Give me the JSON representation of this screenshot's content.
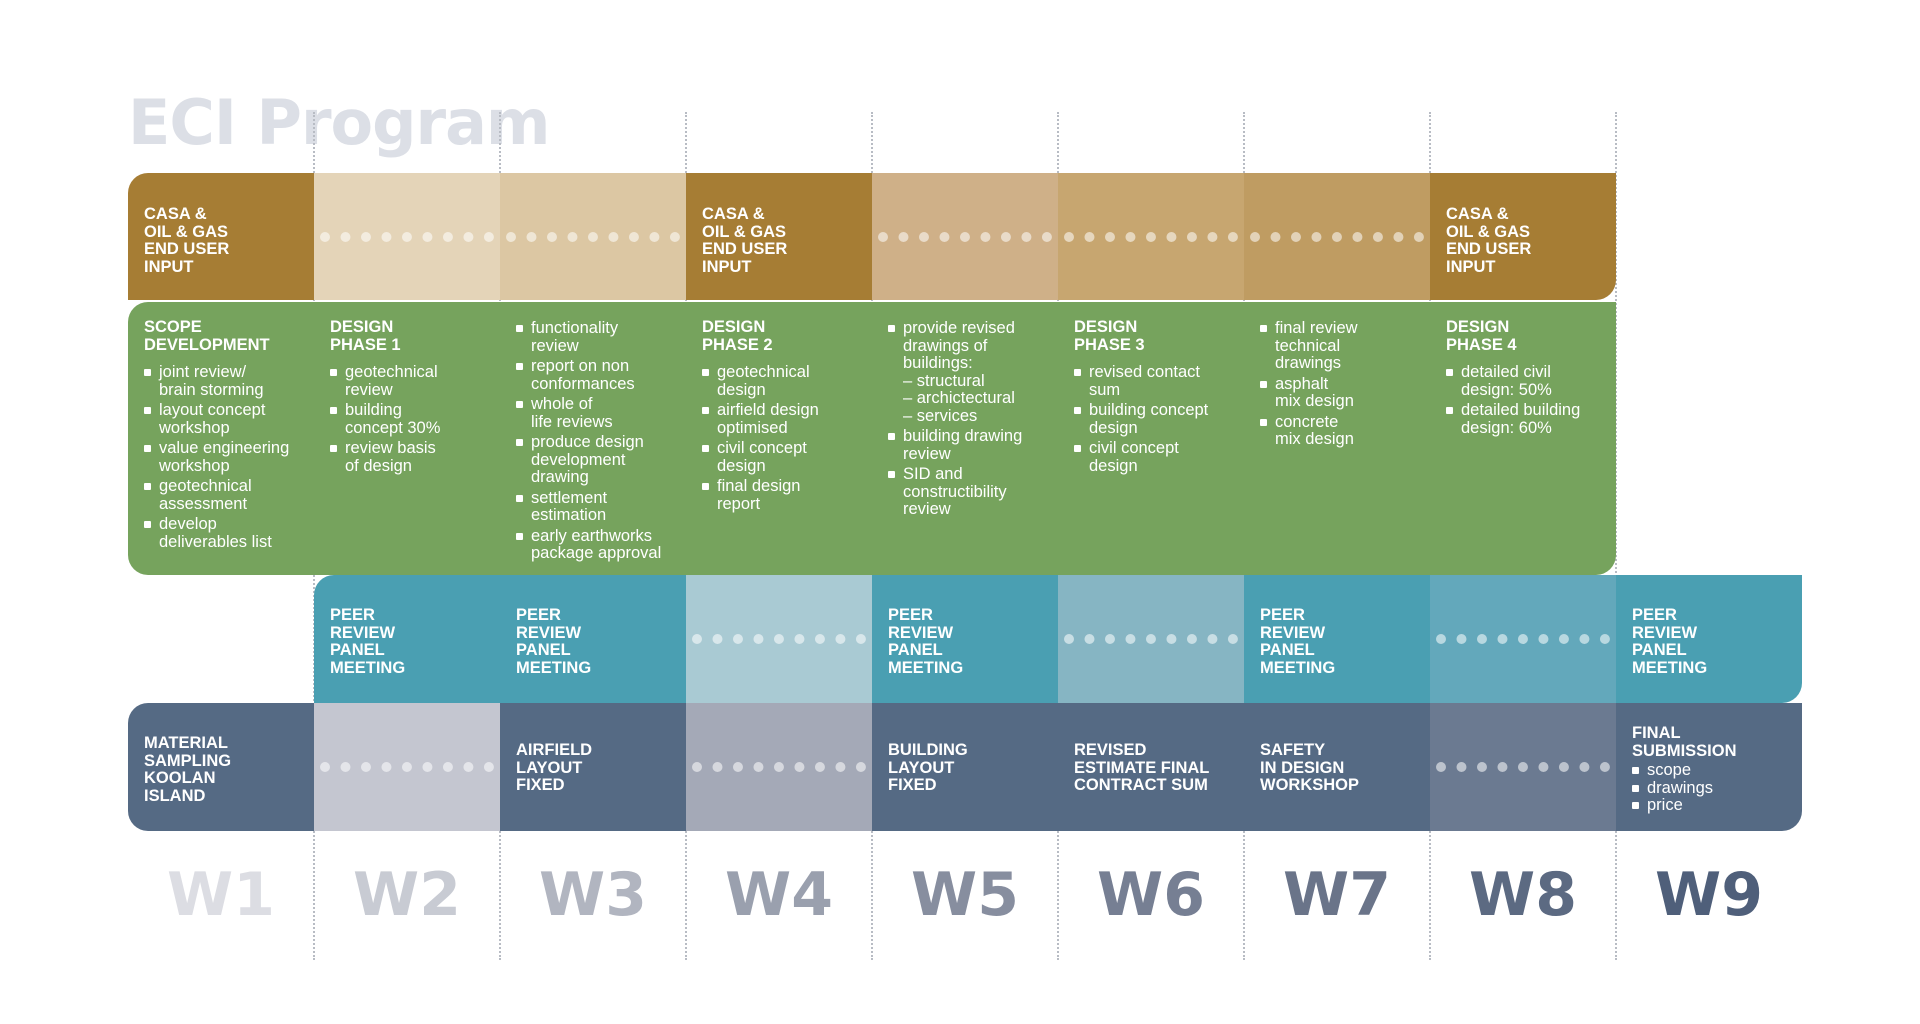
{
  "title": "ECI Program",
  "weeks": [
    "W1",
    "W2",
    "W3",
    "W4",
    "W5",
    "W6",
    "W7",
    "W8",
    "W9"
  ],
  "colors": {
    "title": "#dcdfe6",
    "week_labels": [
      "#dcdde3",
      "#c8cbd3",
      "#b1b5c0",
      "#9aa0ae",
      "#878e9f",
      "#767f93",
      "#6a7489",
      "#5c6a82",
      "#4f5f7a"
    ],
    "row1": [
      "#a67d34",
      "#e4d4b8",
      "#dcc7a3",
      "#a67d34",
      "#cfb088",
      "#c7a670",
      "#bf9c62",
      "#a67d34"
    ],
    "row2": "#76a35d",
    "row3": [
      "#4a9fb2",
      "#4a9fb2",
      "#a9cad3",
      "#4a9fb2",
      "#86b5c3",
      "#4a9fb2",
      "#63a8bb",
      "#4a9fb2"
    ],
    "row4": [
      "#556a84",
      "#c4c6d0",
      "#556a84",
      "#a4a9b7",
      "#556a84",
      "#556a84",
      "#556a84",
      "#6b7a91",
      "#556a84"
    ]
  },
  "row1": [
    "CASA &\nOIL & GAS\nEND USER\nINPUT",
    "",
    "",
    "CASA &\nOIL & GAS\nEND USER\nINPUT",
    "",
    "",
    "",
    "CASA &\nOIL & GAS\nEND USER\nINPUT"
  ],
  "row2": [
    {
      "heading": "SCOPE\nDEVELOPMENT",
      "bullets": [
        "joint review/\nbrain storming",
        "layout concept\nworkshop",
        "value engineering\nworkshop",
        "geotechnical\nassessment",
        "develop\ndeliverables list"
      ]
    },
    {
      "heading": "DESIGN\nPHASE 1",
      "bullets": [
        "geotechnical\nreview",
        "building\nconcept 30%",
        "review basis\nof design"
      ]
    },
    {
      "heading": "",
      "bullets": [
        "functionality\nreview",
        "report on non\nconformances",
        "whole of\nlife reviews",
        "produce design\ndevelopment\ndrawing",
        "settlement\nestimation",
        "early earthworks\npackage approval"
      ]
    },
    {
      "heading": "DESIGN\nPHASE 2",
      "bullets": [
        "geotechnical\ndesign",
        "airfield design\noptimised",
        "civil concept\ndesign",
        "final design\nreport"
      ]
    },
    {
      "heading": "",
      "bullets": [
        "provide revised\ndrawings of\nbuildings:\n– structural\n– archictectural\n– services",
        "building drawing\nreview",
        "SID and\nconstructibility\nreview"
      ]
    },
    {
      "heading": "DESIGN\nPHASE 3",
      "bullets": [
        "revised contact\nsum",
        "building concept\ndesign",
        "civil concept\ndesign"
      ]
    },
    {
      "heading": "",
      "bullets": [
        "final review\ntechnical\ndrawings",
        "asphalt\nmix design",
        "concrete\nmix design"
      ]
    },
    {
      "heading": "DESIGN\nPHASE 4",
      "bullets": [
        "detailed civil\ndesign: 50%",
        "detailed building\ndesign: 60%"
      ]
    }
  ],
  "row3": [
    "PEER\nREVIEW\nPANEL\nMEETING",
    "PEER\nREVIEW\nPANEL\nMEETING",
    "",
    "PEER\nREVIEW\nPANEL\nMEETING",
    "",
    "PEER\nREVIEW\nPANEL\nMEETING",
    "",
    "PEER\nREVIEW\nPANEL\nMEETING"
  ],
  "row4": [
    "MATERIAL\nSAMPLING\nKOOLAN\nISLAND",
    "",
    "AIRFIELD\nLAYOUT\nFIXED",
    "",
    "BUILDING\nLAYOUT\nFIXED",
    "REVISED\nESTIMATE FINAL\nCONTRACT SUM",
    "SAFETY\nIN DESIGN\nWORKSHOP",
    "",
    {
      "heading": "FINAL\nSUBMISSION",
      "bullets": [
        "scope",
        "drawings",
        "price"
      ]
    }
  ]
}
